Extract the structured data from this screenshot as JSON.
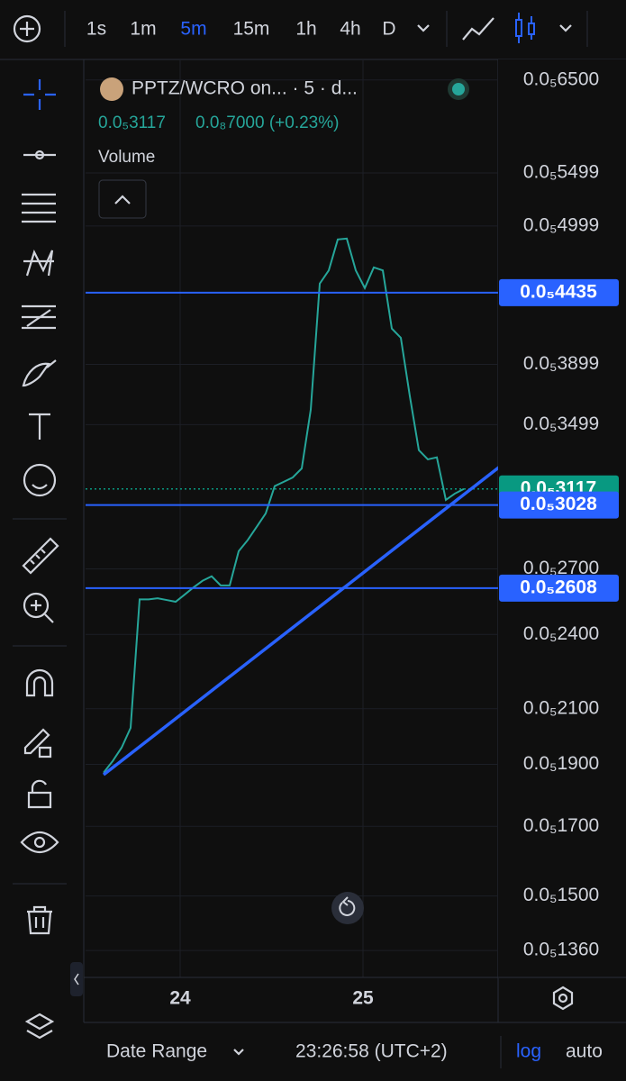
{
  "toolbar": {
    "intervals": [
      "1s",
      "1m",
      "5m",
      "15m",
      "1h",
      "4h",
      "D"
    ],
    "active_interval": 2
  },
  "legend": {
    "symbol": "PPTZ/WCRO on... · 5 · d...",
    "price": "0.0₅3117",
    "change": "0.0₈7000 (+0.23%)",
    "indicator": "Volume"
  },
  "chart_data": {
    "type": "line",
    "log_scale": true,
    "grid": true,
    "color": "#26a69a",
    "ylim": [
      1.3e-06,
      6.7e-06
    ],
    "yticks": [
      {
        "value": 6.5e-06,
        "label": "0.0₅6500"
      },
      {
        "value": 5.499e-06,
        "label": "0.0₅5499"
      },
      {
        "value": 4.999e-06,
        "label": "0.0₅4999"
      },
      {
        "value": 3.899e-06,
        "label": "0.0₅3899"
      },
      {
        "value": 3.499e-06,
        "label": "0.0₅3499"
      },
      {
        "value": 2.7e-06,
        "label": "0.0₅2700"
      },
      {
        "value": 2.4e-06,
        "label": "0.0₅2400"
      },
      {
        "value": 2.1e-06,
        "label": "0.0₅2100"
      },
      {
        "value": 1.9e-06,
        "label": "0.0₅1900"
      },
      {
        "value": 1.7e-06,
        "label": "0.0₅1700"
      },
      {
        "value": 1.5e-06,
        "label": "0.0₅1500"
      },
      {
        "value": 1.36e-06,
        "label": "0.0₅1360"
      }
    ],
    "values": [
      1.872e-06,
      1.911e-06,
      1.958e-06,
      2.029e-06,
      2.556e-06,
      2.556e-06,
      2.561e-06,
      2.553e-06,
      2.545e-06,
      2.578e-06,
      2.612e-06,
      2.643e-06,
      2.664e-06,
      2.621e-06,
      2.621e-06,
      2.787e-06,
      2.843e-06,
      2.912e-06,
      2.983e-06,
      3.133e-06,
      3.157e-06,
      3.182e-06,
      3.234e-06,
      3.594e-06,
      4.508e-06,
      4.616e-06,
      4.88e-06,
      4.888e-06,
      4.616e-06,
      4.472e-06,
      4.641e-06,
      4.616e-06,
      4.158e-06,
      4.09e-06,
      3.683e-06,
      3.342e-06,
      3.287e-06,
      3.299e-06,
      3.056e-06,
      3.091e-06,
      3.117e-06
    ],
    "price_lines": [
      {
        "value": 4.435e-06,
        "label": "0.0₅4435",
        "color": "#2962ff"
      },
      {
        "value": 3.117e-06,
        "label": "0.0₅3117",
        "color": "#089981"
      },
      {
        "value": 3.028e-06,
        "label": "0.0₅3028",
        "color": "#2962ff"
      },
      {
        "value": 2.608e-06,
        "label": "0.0₅2608",
        "color": "#2962ff"
      }
    ],
    "x_labels": [
      "24",
      "25"
    ]
  },
  "bottom_bar": {
    "date_range": "Date Range",
    "clock": "23:26:58 (UTC+2)",
    "log": "log",
    "auto": "auto"
  }
}
